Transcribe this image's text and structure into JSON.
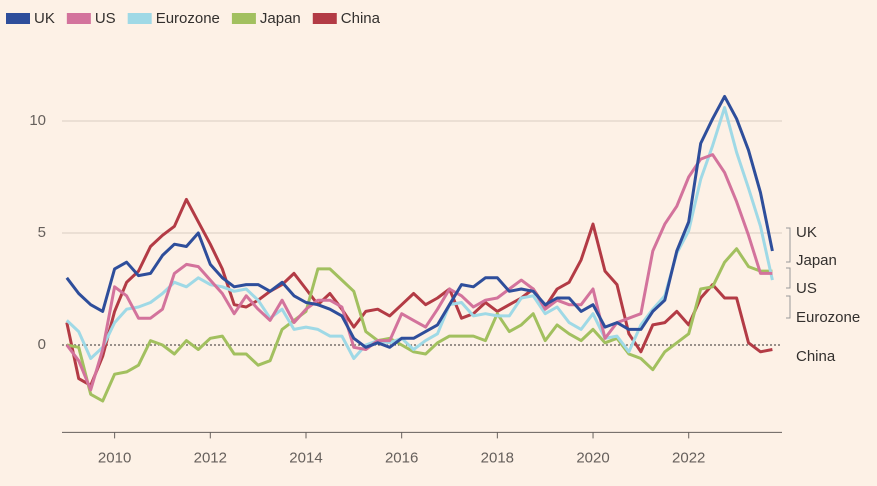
{
  "chart_data": {
    "type": "line",
    "x": [
      2009,
      2009.25,
      2009.5,
      2009.75,
      2010,
      2010.25,
      2010.5,
      2010.75,
      2011,
      2011.25,
      2011.5,
      2011.75,
      2012,
      2012.25,
      2012.5,
      2012.75,
      2013,
      2013.25,
      2013.5,
      2013.75,
      2014,
      2014.25,
      2014.5,
      2014.75,
      2015,
      2015.25,
      2015.5,
      2015.75,
      2016,
      2016.25,
      2016.5,
      2016.75,
      2017,
      2017.25,
      2017.5,
      2017.75,
      2018,
      2018.25,
      2018.5,
      2018.75,
      2019,
      2019.25,
      2019.5,
      2019.75,
      2020,
      2020.25,
      2020.5,
      2020.75,
      2021,
      2021.25,
      2021.5,
      2021.75,
      2022,
      2022.25,
      2022.5,
      2022.75,
      2023,
      2023.25,
      2023.5,
      2023.75
    ],
    "series": [
      {
        "name": "UK",
        "color": "#2e4e9b",
        "values": [
          3.0,
          2.3,
          1.8,
          1.5,
          3.4,
          3.7,
          3.1,
          3.2,
          4.0,
          4.5,
          4.4,
          5.0,
          3.6,
          3.0,
          2.6,
          2.7,
          2.7,
          2.4,
          2.8,
          2.2,
          1.9,
          1.8,
          1.6,
          1.3,
          0.3,
          -0.1,
          0.1,
          -0.1,
          0.3,
          0.3,
          0.6,
          0.9,
          1.8,
          2.7,
          2.6,
          3.0,
          3.0,
          2.4,
          2.5,
          2.4,
          1.8,
          2.1,
          2.1,
          1.5,
          1.8,
          0.8,
          1.0,
          0.7,
          0.7,
          1.5,
          2.0,
          4.2,
          5.5,
          9.0,
          10.1,
          11.1,
          10.1,
          8.7,
          6.8,
          4.2
        ]
      },
      {
        "name": "US",
        "color": "#d3739c",
        "values": [
          0.0,
          -0.7,
          -2.0,
          -0.2,
          2.6,
          2.2,
          1.2,
          1.2,
          1.6,
          3.2,
          3.6,
          3.5,
          2.9,
          2.3,
          1.4,
          2.2,
          1.6,
          1.1,
          2.0,
          1.0,
          1.6,
          2.0,
          2.0,
          1.7,
          -0.1,
          -0.2,
          0.2,
          0.2,
          1.4,
          1.1,
          0.8,
          1.6,
          2.5,
          2.2,
          1.7,
          2.0,
          2.1,
          2.5,
          2.9,
          2.5,
          1.6,
          2.0,
          1.8,
          1.8,
          2.5,
          0.3,
          1.0,
          1.2,
          1.4,
          4.2,
          5.4,
          6.2,
          7.5,
          8.3,
          8.5,
          7.7,
          6.4,
          4.9,
          3.2,
          3.2
        ]
      },
      {
        "name": "Eurozone",
        "color": "#9fd9e6",
        "values": [
          1.1,
          0.6,
          -0.6,
          -0.1,
          1.0,
          1.6,
          1.7,
          1.9,
          2.3,
          2.8,
          2.6,
          3.0,
          2.7,
          2.6,
          2.4,
          2.5,
          2.0,
          1.2,
          1.6,
          0.7,
          0.8,
          0.7,
          0.4,
          0.4,
          -0.6,
          0.0,
          0.2,
          0.1,
          0.3,
          -0.2,
          0.2,
          0.5,
          1.8,
          1.9,
          1.3,
          1.4,
          1.3,
          1.3,
          2.1,
          2.2,
          1.4,
          1.7,
          1.0,
          0.7,
          1.4,
          0.3,
          0.4,
          -0.3,
          0.9,
          1.6,
          2.2,
          4.1,
          5.1,
          7.4,
          8.9,
          10.6,
          8.6,
          7.0,
          5.3,
          2.9
        ]
      },
      {
        "name": "Japan",
        "color": "#a2c05f",
        "values": [
          0.0,
          -0.1,
          -2.2,
          -2.5,
          -1.3,
          -1.2,
          -0.9,
          0.2,
          0.0,
          -0.4,
          0.2,
          -0.2,
          0.3,
          0.4,
          -0.4,
          -0.4,
          -0.9,
          -0.7,
          0.7,
          1.1,
          1.5,
          3.4,
          3.4,
          2.9,
          2.4,
          0.6,
          0.2,
          0.3,
          0.0,
          -0.3,
          -0.4,
          0.1,
          0.4,
          0.4,
          0.4,
          0.2,
          1.4,
          0.6,
          0.9,
          1.4,
          0.2,
          0.9,
          0.5,
          0.2,
          0.7,
          0.1,
          0.3,
          -0.4,
          -0.6,
          -1.1,
          -0.3,
          0.1,
          0.5,
          2.5,
          2.6,
          3.7,
          4.3,
          3.5,
          3.3,
          3.3
        ]
      },
      {
        "name": "China",
        "color": "#b33b45",
        "values": [
          1.0,
          -1.5,
          -1.8,
          -0.5,
          1.5,
          2.8,
          3.3,
          4.4,
          4.9,
          5.3,
          6.5,
          5.5,
          4.5,
          3.4,
          1.8,
          1.7,
          2.0,
          2.4,
          2.7,
          3.2,
          2.5,
          1.8,
          2.3,
          1.6,
          0.8,
          1.5,
          1.6,
          1.3,
          1.8,
          2.3,
          1.8,
          2.1,
          2.5,
          1.2,
          1.4,
          1.9,
          1.5,
          1.8,
          2.1,
          2.5,
          1.7,
          2.5,
          2.8,
          3.8,
          5.4,
          3.3,
          2.7,
          0.5,
          -0.3,
          0.9,
          1.0,
          1.5,
          0.9,
          2.1,
          2.7,
          2.1,
          2.1,
          0.1,
          -0.3,
          -0.2
        ]
      }
    ],
    "xlim": [
      2008.9,
      2023.95
    ],
    "xticks": [
      2010,
      2012,
      2014,
      2016,
      2018,
      2020,
      2022
    ],
    "ylim": [
      -3.9,
      13.6
    ],
    "yticks": [
      0,
      5,
      10
    ],
    "grid": true
  }
}
